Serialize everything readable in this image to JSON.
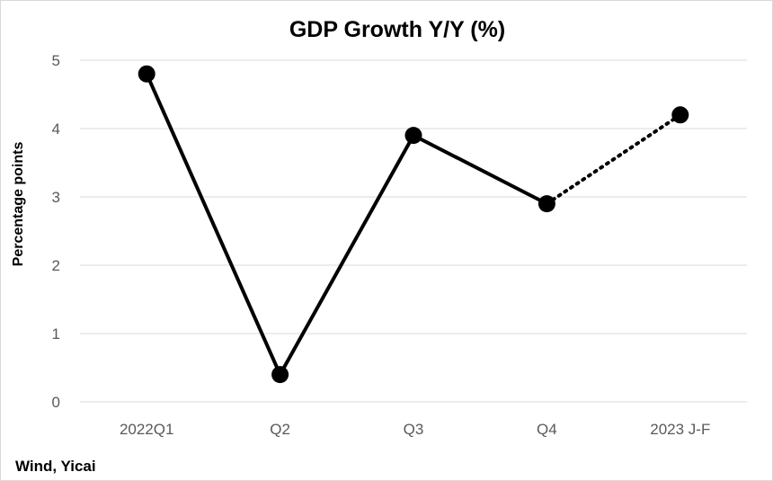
{
  "chart_data": {
    "type": "line",
    "title": "GDP Growth Y/Y (%)",
    "xlabel": "",
    "ylabel": "Percentage points",
    "categories": [
      "2022Q1",
      "Q2",
      "Q3",
      "Q4",
      "2023 J-F"
    ],
    "series": [
      {
        "values": [
          4.8,
          0.4,
          3.9,
          2.9,
          4.2
        ],
        "color": "#000000",
        "dotted_last_segment": true
      }
    ],
    "ylim": [
      0,
      5
    ],
    "yticks": [
      "0",
      "1",
      "2",
      "3",
      "4",
      "5"
    ],
    "grid": true,
    "legend": "none"
  },
  "source_note": "Wind, Yicai"
}
